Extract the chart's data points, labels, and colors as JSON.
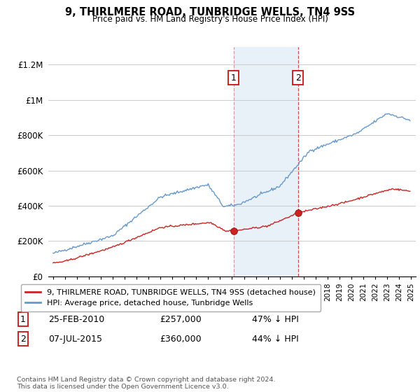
{
  "title": "9, THIRLMERE ROAD, TUNBRIDGE WELLS, TN4 9SS",
  "subtitle": "Price paid vs. HM Land Registry's House Price Index (HPI)",
  "ylim": [
    0,
    1300000
  ],
  "yticks": [
    0,
    200000,
    400000,
    600000,
    800000,
    1000000,
    1200000
  ],
  "ytick_labels": [
    "£0",
    "£200K",
    "£400K",
    "£600K",
    "£800K",
    "£1M",
    "£1.2M"
  ],
  "hpi_color": "#6699cc",
  "price_color": "#cc2222",
  "transaction1_year": 2010.12,
  "transaction1_price": 257000,
  "transaction2_year": 2015.52,
  "transaction2_price": 360000,
  "legend_house_label": "9, THIRLMERE ROAD, TUNBRIDGE WELLS, TN4 9SS (detached house)",
  "legend_hpi_label": "HPI: Average price, detached house, Tunbridge Wells",
  "table_row1": [
    "1",
    "25-FEB-2010",
    "£257,000",
    "47% ↓ HPI"
  ],
  "table_row2": [
    "2",
    "07-JUL-2015",
    "£360,000",
    "44% ↓ HPI"
  ],
  "footer": "Contains HM Land Registry data © Crown copyright and database right 2024.\nThis data is licensed under the Open Government Licence v3.0.",
  "bg_color": "#ffffff",
  "grid_color": "#cccccc",
  "shade_color": "#e8f0f8"
}
